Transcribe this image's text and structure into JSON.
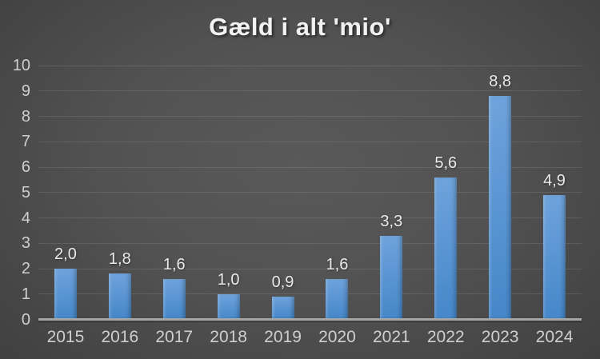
{
  "title": "Gæld i alt 'mio'",
  "chart_data": {
    "type": "bar",
    "title": "Gæld i alt 'mio'",
    "categories": [
      "2015",
      "2016",
      "2017",
      "2018",
      "2019",
      "2020",
      "2021",
      "2022",
      "2023",
      "2024"
    ],
    "values": [
      2.0,
      1.8,
      1.6,
      1.0,
      0.9,
      1.6,
      3.3,
      5.6,
      8.8,
      4.9
    ],
    "value_labels": [
      "2,0",
      "1,8",
      "1,6",
      "1,0",
      "0,9",
      "1,6",
      "3,3",
      "5,6",
      "8,8",
      "4,9"
    ],
    "xlabel": "",
    "ylabel": "",
    "ylim": [
      0,
      10
    ],
    "yticks": [
      "0",
      "1",
      "2",
      "3",
      "4",
      "5",
      "6",
      "7",
      "8",
      "9",
      "10"
    ],
    "grid": true,
    "legend": false
  },
  "colors": {
    "bar_gradient_top": "#6FA3DC",
    "bar_gradient_bottom": "#4587C9",
    "background_center": "#595959",
    "background_edge": "#222222",
    "gridline": "rgba(255,255,255,0.11)",
    "axis_line": "#A6A6A6",
    "title_text": "#F2F2F2",
    "tick_text": "#CFCFCF",
    "data_label_text": "#E9E9E9"
  }
}
